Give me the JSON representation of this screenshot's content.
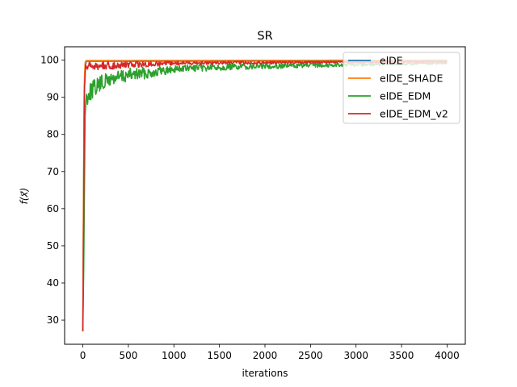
{
  "chart_data": {
    "type": "line",
    "title": "SR",
    "xlabel": "iterations",
    "ylabel": "f(x⃗)",
    "xlim": [
      -200,
      4200
    ],
    "ylim": [
      23.5,
      103.6
    ],
    "xticks": [
      0,
      500,
      1000,
      1500,
      2000,
      2500,
      3000,
      3500,
      4000
    ],
    "yticks": [
      30,
      40,
      50,
      60,
      70,
      80,
      90,
      100
    ],
    "grid": false,
    "legend_position": "upper right",
    "series": [
      {
        "name": "elDE",
        "color": "#1f77b4",
        "points": [
          [
            0,
            27
          ],
          [
            5,
            50
          ],
          [
            15,
            90
          ],
          [
            25,
            98.5
          ],
          [
            40,
            99.7
          ],
          [
            4000,
            99.8
          ]
        ],
        "noise": 0
      },
      {
        "name": "elDE_SHADE",
        "color": "#ff7f0e",
        "points": [
          [
            0,
            27
          ],
          [
            5,
            55
          ],
          [
            15,
            93
          ],
          [
            25,
            99.3
          ],
          [
            35,
            99.9
          ],
          [
            4000,
            100
          ]
        ],
        "noise": 0
      },
      {
        "name": "elDE_EDM",
        "color": "#2ca02c",
        "points": [
          [
            0,
            27
          ],
          [
            10,
            45
          ],
          [
            25,
            85
          ],
          [
            35,
            92
          ],
          [
            60,
            93.5
          ],
          [
            100,
            94.5
          ],
          [
            200,
            96
          ],
          [
            300,
            97
          ],
          [
            500,
            97.8
          ],
          [
            800,
            98.3
          ],
          [
            1000,
            98.6
          ],
          [
            1500,
            98.9
          ],
          [
            2000,
            99.1
          ],
          [
            2500,
            99.2
          ],
          [
            3000,
            99.3
          ],
          [
            3500,
            99.35
          ],
          [
            4000,
            99.4
          ]
        ],
        "noise": 1
      },
      {
        "name": "elDE_EDM_v2",
        "color": "#d62728",
        "points": [
          [
            0,
            27
          ],
          [
            8,
            55
          ],
          [
            18,
            92
          ],
          [
            30,
            98.8
          ],
          [
            60,
            99.4
          ],
          [
            200,
            99.6
          ],
          [
            1000,
            99.7
          ],
          [
            2000,
            99.7
          ],
          [
            3000,
            99.7
          ],
          [
            4000,
            99.7
          ]
        ],
        "noise": 0.5
      }
    ]
  }
}
